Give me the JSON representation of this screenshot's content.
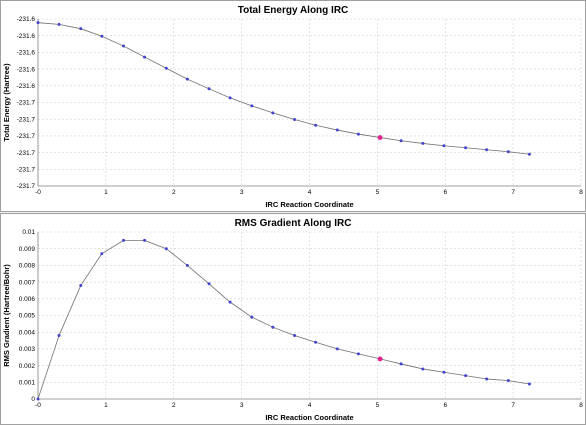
{
  "chart_data": [
    {
      "type": "line",
      "title": "Total Energy Along IRC",
      "xlabel": "IRC Reaction Coordinate",
      "ylabel": "Total Energy (Hartree)",
      "xlim": [
        0,
        8
      ],
      "ylim": [
        -231.7,
        -231.6
      ],
      "x_ticks": [
        0,
        1,
        2,
        3,
        4,
        5,
        6,
        7,
        8
      ],
      "x_tick_labels": [
        "-0",
        "1",
        "2",
        "3",
        "4",
        "5",
        "6",
        "7",
        "8"
      ],
      "y_ticks": [
        -231.7,
        -231.69,
        -231.68,
        -231.67,
        -231.66,
        -231.65,
        -231.64,
        -231.63,
        -231.62,
        -231.61,
        -231.6
      ],
      "y_tick_labels": [
        "-231.7",
        "-231.7",
        "-231.7",
        "-231.7",
        "-231.7",
        "-231.7",
        "-231.6",
        "-231.6",
        "-231.6",
        "-231.6",
        "-231.6"
      ],
      "grid": true,
      "highlight_index": 16,
      "x": [
        0,
        0.31,
        0.63,
        0.94,
        1.26,
        1.57,
        1.89,
        2.2,
        2.52,
        2.83,
        3.15,
        3.46,
        3.78,
        4.09,
        4.41,
        4.72,
        5.04,
        5.35,
        5.67,
        5.98,
        6.3,
        6.61,
        6.93,
        7.24
      ],
      "y": [
        -231.6022,
        -231.6032,
        -231.6058,
        -231.6103,
        -231.6162,
        -231.6228,
        -231.6295,
        -231.636,
        -231.6418,
        -231.6472,
        -231.652,
        -231.6562,
        -231.6602,
        -231.6636,
        -231.6665,
        -231.6689,
        -231.671,
        -231.6729,
        -231.6745,
        -231.6759,
        -231.6771,
        -231.6783,
        -231.6795,
        -231.681
      ]
    },
    {
      "type": "line",
      "title": "RMS Gradient Along IRC",
      "xlabel": "IRC Reaction Coordinate",
      "ylabel": "RMS Gradient (Hartree/Bohr)",
      "xlim": [
        0,
        8
      ],
      "ylim": [
        0,
        0.01
      ],
      "x_ticks": [
        0,
        1,
        2,
        3,
        4,
        5,
        6,
        7,
        8
      ],
      "x_tick_labels": [
        "-0",
        "1",
        "2",
        "3",
        "4",
        "5",
        "6",
        "7",
        "8"
      ],
      "y_ticks": [
        0,
        0.001,
        0.002,
        0.003,
        0.004,
        0.005,
        0.006,
        0.007,
        0.008,
        0.009,
        0.01
      ],
      "y_tick_labels": [
        "0",
        "0.001",
        "0.002",
        "0.003",
        "0.004",
        "0.005",
        "0.006",
        "0.007",
        "0.008",
        "0.009",
        "0.01"
      ],
      "grid": true,
      "highlight_index": 16,
      "x": [
        0,
        0.31,
        0.63,
        0.94,
        1.26,
        1.57,
        1.89,
        2.2,
        2.52,
        2.83,
        3.15,
        3.46,
        3.78,
        4.09,
        4.41,
        4.72,
        5.04,
        5.35,
        5.67,
        5.98,
        6.3,
        6.61,
        6.93,
        7.24
      ],
      "y": [
        0.0,
        0.0038,
        0.0068,
        0.0087,
        0.0095,
        0.0095,
        0.009,
        0.008,
        0.0069,
        0.0058,
        0.0049,
        0.0043,
        0.0038,
        0.0034,
        0.003,
        0.0027,
        0.0024,
        0.0021,
        0.0018,
        0.0016,
        0.0014,
        0.0012,
        0.0011,
        0.0009
      ]
    }
  ]
}
